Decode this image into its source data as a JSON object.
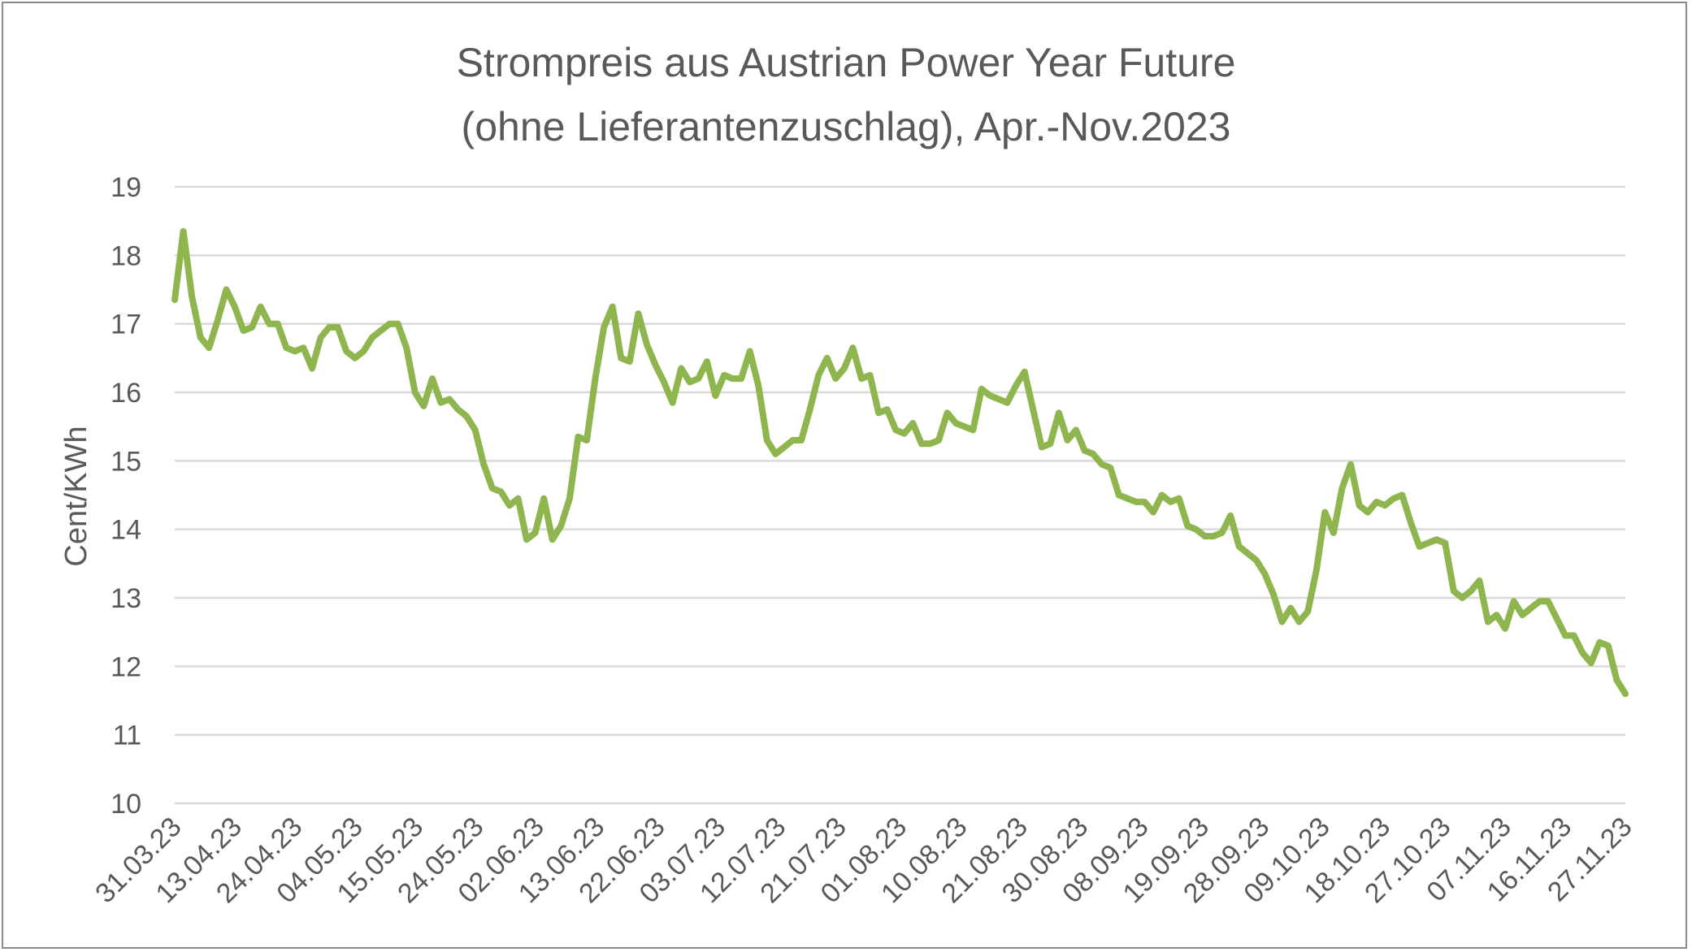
{
  "chart_data": {
    "type": "line",
    "title_lines": [
      "Strompreis aus Austrian Power Year Future",
      "(ohne Lieferantenzuschlag), Apr.-Nov.2023"
    ],
    "xlabel": "",
    "ylabel": "Cent/KWh",
    "ylim": [
      10,
      19
    ],
    "yticks": [
      "19",
      "18",
      "17",
      "16",
      "15",
      "14",
      "13",
      "12",
      "11",
      "10"
    ],
    "grid": true,
    "legend": "none",
    "colors": {
      "line": "#8fb54e",
      "grid": "#d9d9d9",
      "text": "#595959",
      "border": "#8c8c8c"
    },
    "x_tick_labels": [
      "31.03.23",
      "13.04.23",
      "24.04.23",
      "04.05.23",
      "15.05.23",
      "24.05.23",
      "02.06.23",
      "13.06.23",
      "22.06.23",
      "03.07.23",
      "12.07.23",
      "21.07.23",
      "01.08.23",
      "10.08.23",
      "21.08.23",
      "30.08.23",
      "08.09.23",
      "19.09.23",
      "28.09.23",
      "09.10.23",
      "18.10.23",
      "27.10.23",
      "07.11.23",
      "16.11.23",
      "27.11.23"
    ],
    "values": [
      17.35,
      18.35,
      17.4,
      16.8,
      16.65,
      17.05,
      17.5,
      17.25,
      16.9,
      16.95,
      17.25,
      17.0,
      17.0,
      16.65,
      16.6,
      16.65,
      16.35,
      16.8,
      16.95,
      16.95,
      16.6,
      16.5,
      16.6,
      16.8,
      16.9,
      17.0,
      17.0,
      16.65,
      16.0,
      15.8,
      16.2,
      15.85,
      15.9,
      15.75,
      15.65,
      15.45,
      14.95,
      14.6,
      14.55,
      14.35,
      14.45,
      13.85,
      13.95,
      14.45,
      13.85,
      14.05,
      14.45,
      15.35,
      15.3,
      16.2,
      16.95,
      17.25,
      16.5,
      16.45,
      17.15,
      16.7,
      16.4,
      16.15,
      15.85,
      16.35,
      16.15,
      16.2,
      16.45,
      15.95,
      16.25,
      16.2,
      16.2,
      16.6,
      16.1,
      15.3,
      15.1,
      15.2,
      15.3,
      15.3,
      15.75,
      16.25,
      16.5,
      16.2,
      16.35,
      16.65,
      16.2,
      16.25,
      15.7,
      15.75,
      15.45,
      15.4,
      15.55,
      15.25,
      15.25,
      15.3,
      15.7,
      15.55,
      15.5,
      15.45,
      16.05,
      15.95,
      15.9,
      15.85,
      16.1,
      16.3,
      15.75,
      15.2,
      15.25,
      15.7,
      15.3,
      15.45,
      15.15,
      15.1,
      14.95,
      14.9,
      14.5,
      14.45,
      14.4,
      14.4,
      14.25,
      14.5,
      14.4,
      14.45,
      14.05,
      14.0,
      13.9,
      13.9,
      13.95,
      14.2,
      13.75,
      13.65,
      13.55,
      13.35,
      13.05,
      12.65,
      12.85,
      12.65,
      12.8,
      13.4,
      14.25,
      13.95,
      14.6,
      14.95,
      14.35,
      14.25,
      14.4,
      14.35,
      14.45,
      14.5,
      14.1,
      13.75,
      13.8,
      13.85,
      13.8,
      13.1,
      13.0,
      13.1,
      13.25,
      12.65,
      12.75,
      12.55,
      12.95,
      12.75,
      12.85,
      12.95,
      12.95,
      12.7,
      12.45,
      12.45,
      12.2,
      12.05,
      12.35,
      12.3,
      11.8,
      11.6
    ]
  }
}
